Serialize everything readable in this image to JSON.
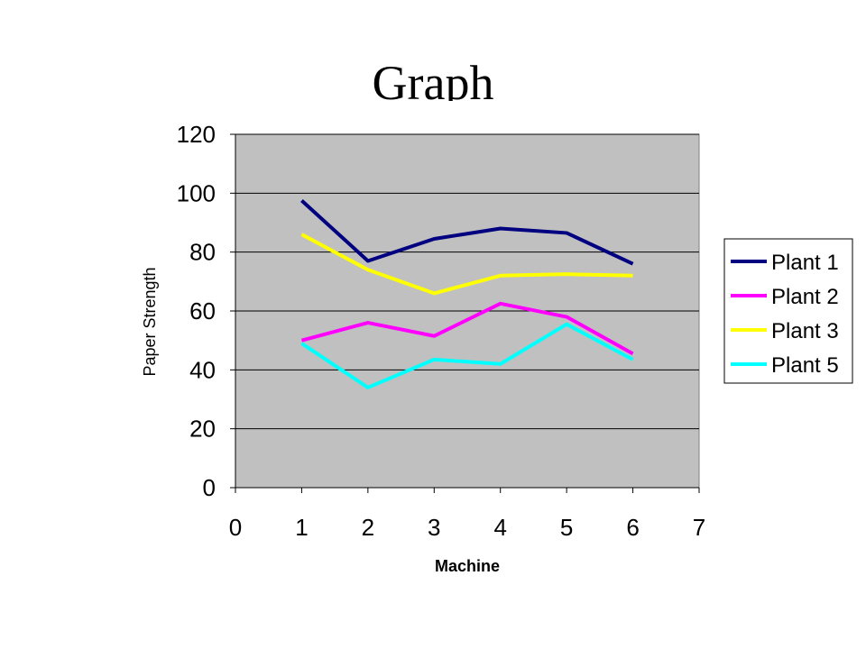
{
  "slide": {
    "title": "Graph"
  },
  "chart_data": {
    "type": "line",
    "title": "",
    "xlabel": "Machine",
    "ylabel": "Paper Strength",
    "xlim": [
      0,
      7
    ],
    "ylim": [
      0,
      120
    ],
    "x_ticks": [
      "0",
      "1",
      "2",
      "3",
      "4",
      "5",
      "6",
      "7"
    ],
    "y_ticks": [
      "0",
      "20",
      "40",
      "60",
      "80",
      "100",
      "120"
    ],
    "grid": "horizontal",
    "legend_position": "right",
    "x": [
      1,
      2,
      3,
      4,
      5,
      6
    ],
    "series": [
      {
        "name": "Plant 1",
        "color": "#000080",
        "values": [
          97.5,
          77,
          84.5,
          88,
          86.5,
          76
        ]
      },
      {
        "name": "Plant 2",
        "color": "#FF00FF",
        "values": [
          50,
          56,
          51.5,
          62.5,
          58,
          45.5
        ]
      },
      {
        "name": "Plant 3",
        "color": "#FFFF00",
        "values": [
          86,
          74,
          66,
          72,
          72.5,
          72
        ]
      },
      {
        "name": "Plant 5",
        "color": "#00FFFF",
        "values": [
          49,
          34,
          43.5,
          42,
          55.5,
          43.5
        ]
      }
    ],
    "plot_background": "#C0C0C0"
  }
}
